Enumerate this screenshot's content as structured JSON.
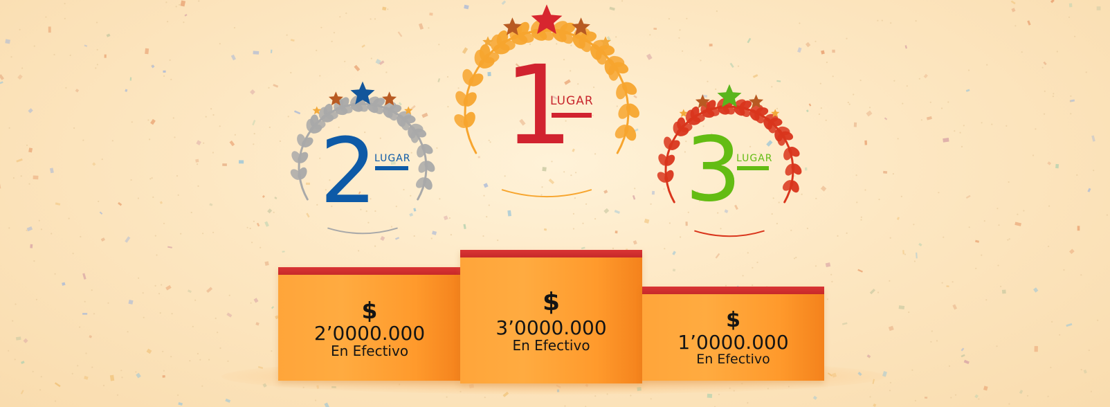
{
  "places": [
    {
      "id": "second",
      "number": "2",
      "label": "LUGAR",
      "dollar": "$",
      "amount": "2’0000.000",
      "cash": "En Efectivo",
      "number_color": "#0d5aa7",
      "laurel_color": "#a9a9a9",
      "star_color": "#13569b",
      "small_star_color": "#b85a22"
    },
    {
      "id": "first",
      "number": "1",
      "label": "LUGAR",
      "dollar": "$",
      "amount": "3’0000.000",
      "cash": "En Efectivo",
      "number_color": "#d1232f",
      "laurel_color": "#f7a52e",
      "star_color": "#d7262f",
      "small_star_color": "#b85a22"
    },
    {
      "id": "third",
      "number": "3",
      "label": "LUGAR",
      "dollar": "$",
      "amount": "1’0000.000",
      "cash": "En Efectivo",
      "number_color": "#63bc13",
      "laurel_color": "#d9351c",
      "star_color": "#5ab51d",
      "small_star_color": "#b85a22"
    }
  ],
  "colors": {
    "podium": "#ffa53a",
    "podium_cap": "#d22f2f",
    "background": "#fde7c2"
  }
}
